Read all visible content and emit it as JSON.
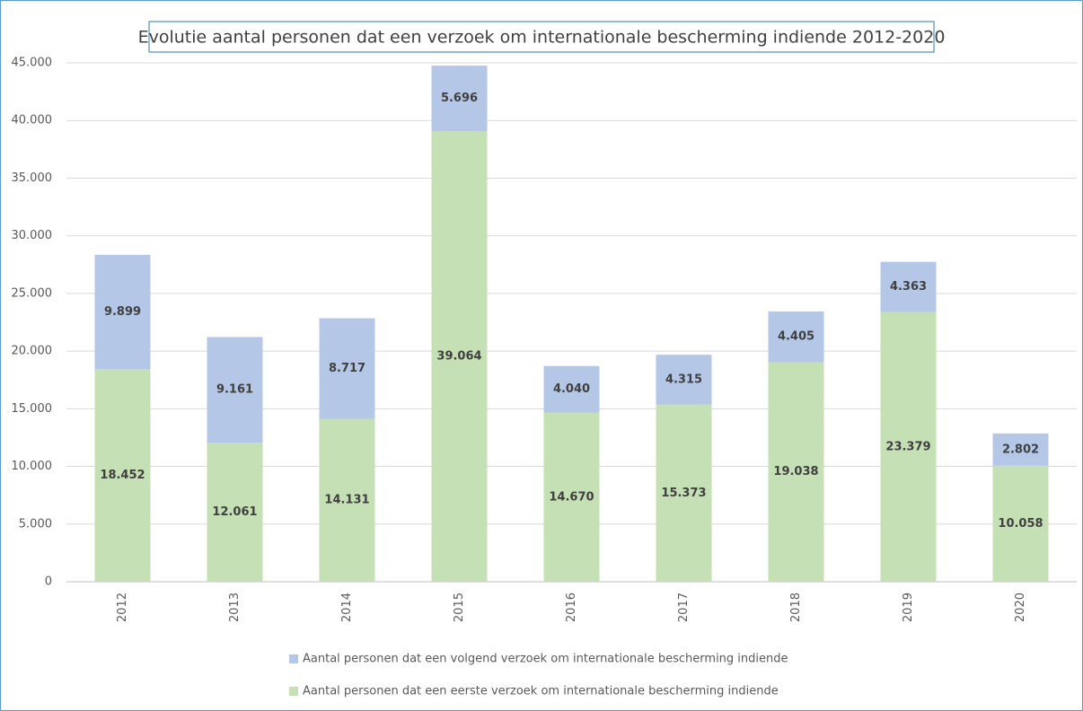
{
  "chart_data": {
    "type": "stacked_bar",
    "title": "Evolutie aantal personen dat een verzoek om internationale bescherming indiende 2012-2020",
    "categories": [
      "2012",
      "2013",
      "2014",
      "2015",
      "2016",
      "2017",
      "2018",
      "2019",
      "2020"
    ],
    "series": [
      {
        "name": "Aantal personen dat een eerste verzoek om internationale bescherming indiende",
        "color": "#c5e0b4",
        "values": [
          18452,
          12061,
          14131,
          39064,
          14670,
          15373,
          19038,
          23379,
          10058
        ],
        "value_labels": [
          "18.452",
          "12.061",
          "14.131",
          "39.064",
          "14.670",
          "15.373",
          "19.038",
          "23.379",
          "10.058"
        ]
      },
      {
        "name": "Aantal personen dat een volgend verzoek om internationale bescherming indiende",
        "color": "#b4c7e7",
        "values": [
          9899,
          9161,
          8717,
          5696,
          4040,
          4315,
          4405,
          4363,
          2802
        ],
        "value_labels": [
          "9.899",
          "9.161",
          "8.717",
          "5.696",
          "4.040",
          "4.315",
          "4.405",
          "4.363",
          "2.802"
        ]
      }
    ],
    "ylim": [
      0,
      45000
    ],
    "yticks": [
      0,
      {
        "value": 5000,
        "label": "5.000"
      },
      {
        "value": 10000,
        "label": "10.000"
      },
      {
        "value": 15000,
        "label": "15.000"
      },
      {
        "value": 20000,
        "label": "20.000"
      },
      {
        "value": 25000,
        "label": "25.000"
      },
      {
        "value": 30000,
        "label": "30.000"
      },
      {
        "value": 35000,
        "label": "35.000"
      },
      {
        "value": 40000,
        "label": "40.000"
      },
      {
        "value": 45000,
        "label": "45.000"
      }
    ],
    "grid": true,
    "legend": "bottom"
  }
}
